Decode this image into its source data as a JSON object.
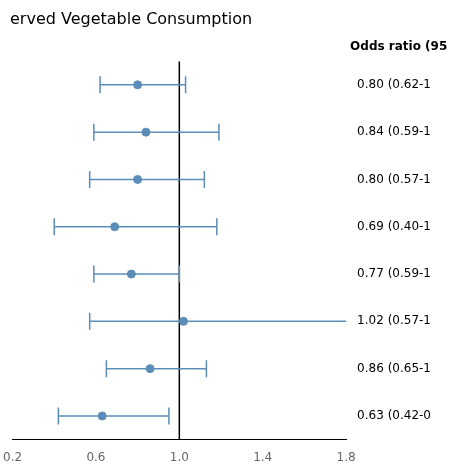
{
  "chart_data": {
    "type": "forest",
    "title": "erved Vegetable Consumption",
    "annotation": "Odds ratio (95",
    "categories": [
      "0.80 (0.62-1",
      "0.84 (0.59-1",
      "0.80 (0.57-1",
      "0.69 (0.40-1",
      "0.77 (0.59-1",
      "1.02 (0.57-1",
      "0.86 (0.65-1",
      "0.63 (0.42-0"
    ],
    "values": [
      0.8,
      0.84,
      0.8,
      0.69,
      0.77,
      1.02,
      0.86,
      0.63
    ],
    "ci_lower": [
      0.62,
      0.59,
      0.57,
      0.4,
      0.59,
      0.57,
      0.65,
      0.42
    ],
    "ci_upper": [
      1.03,
      1.19,
      1.12,
      1.18,
      1.0,
      1.82,
      1.13,
      0.95
    ],
    "ref_line": 1.0,
    "color": "#5b8db8",
    "xlim": [
      0.2,
      1.8
    ],
    "xticks": [
      0.2,
      0.6,
      {
        "value": 1.0,
        "label": "1.0"
      },
      1.4,
      1.8
    ],
    "grid": false
  }
}
